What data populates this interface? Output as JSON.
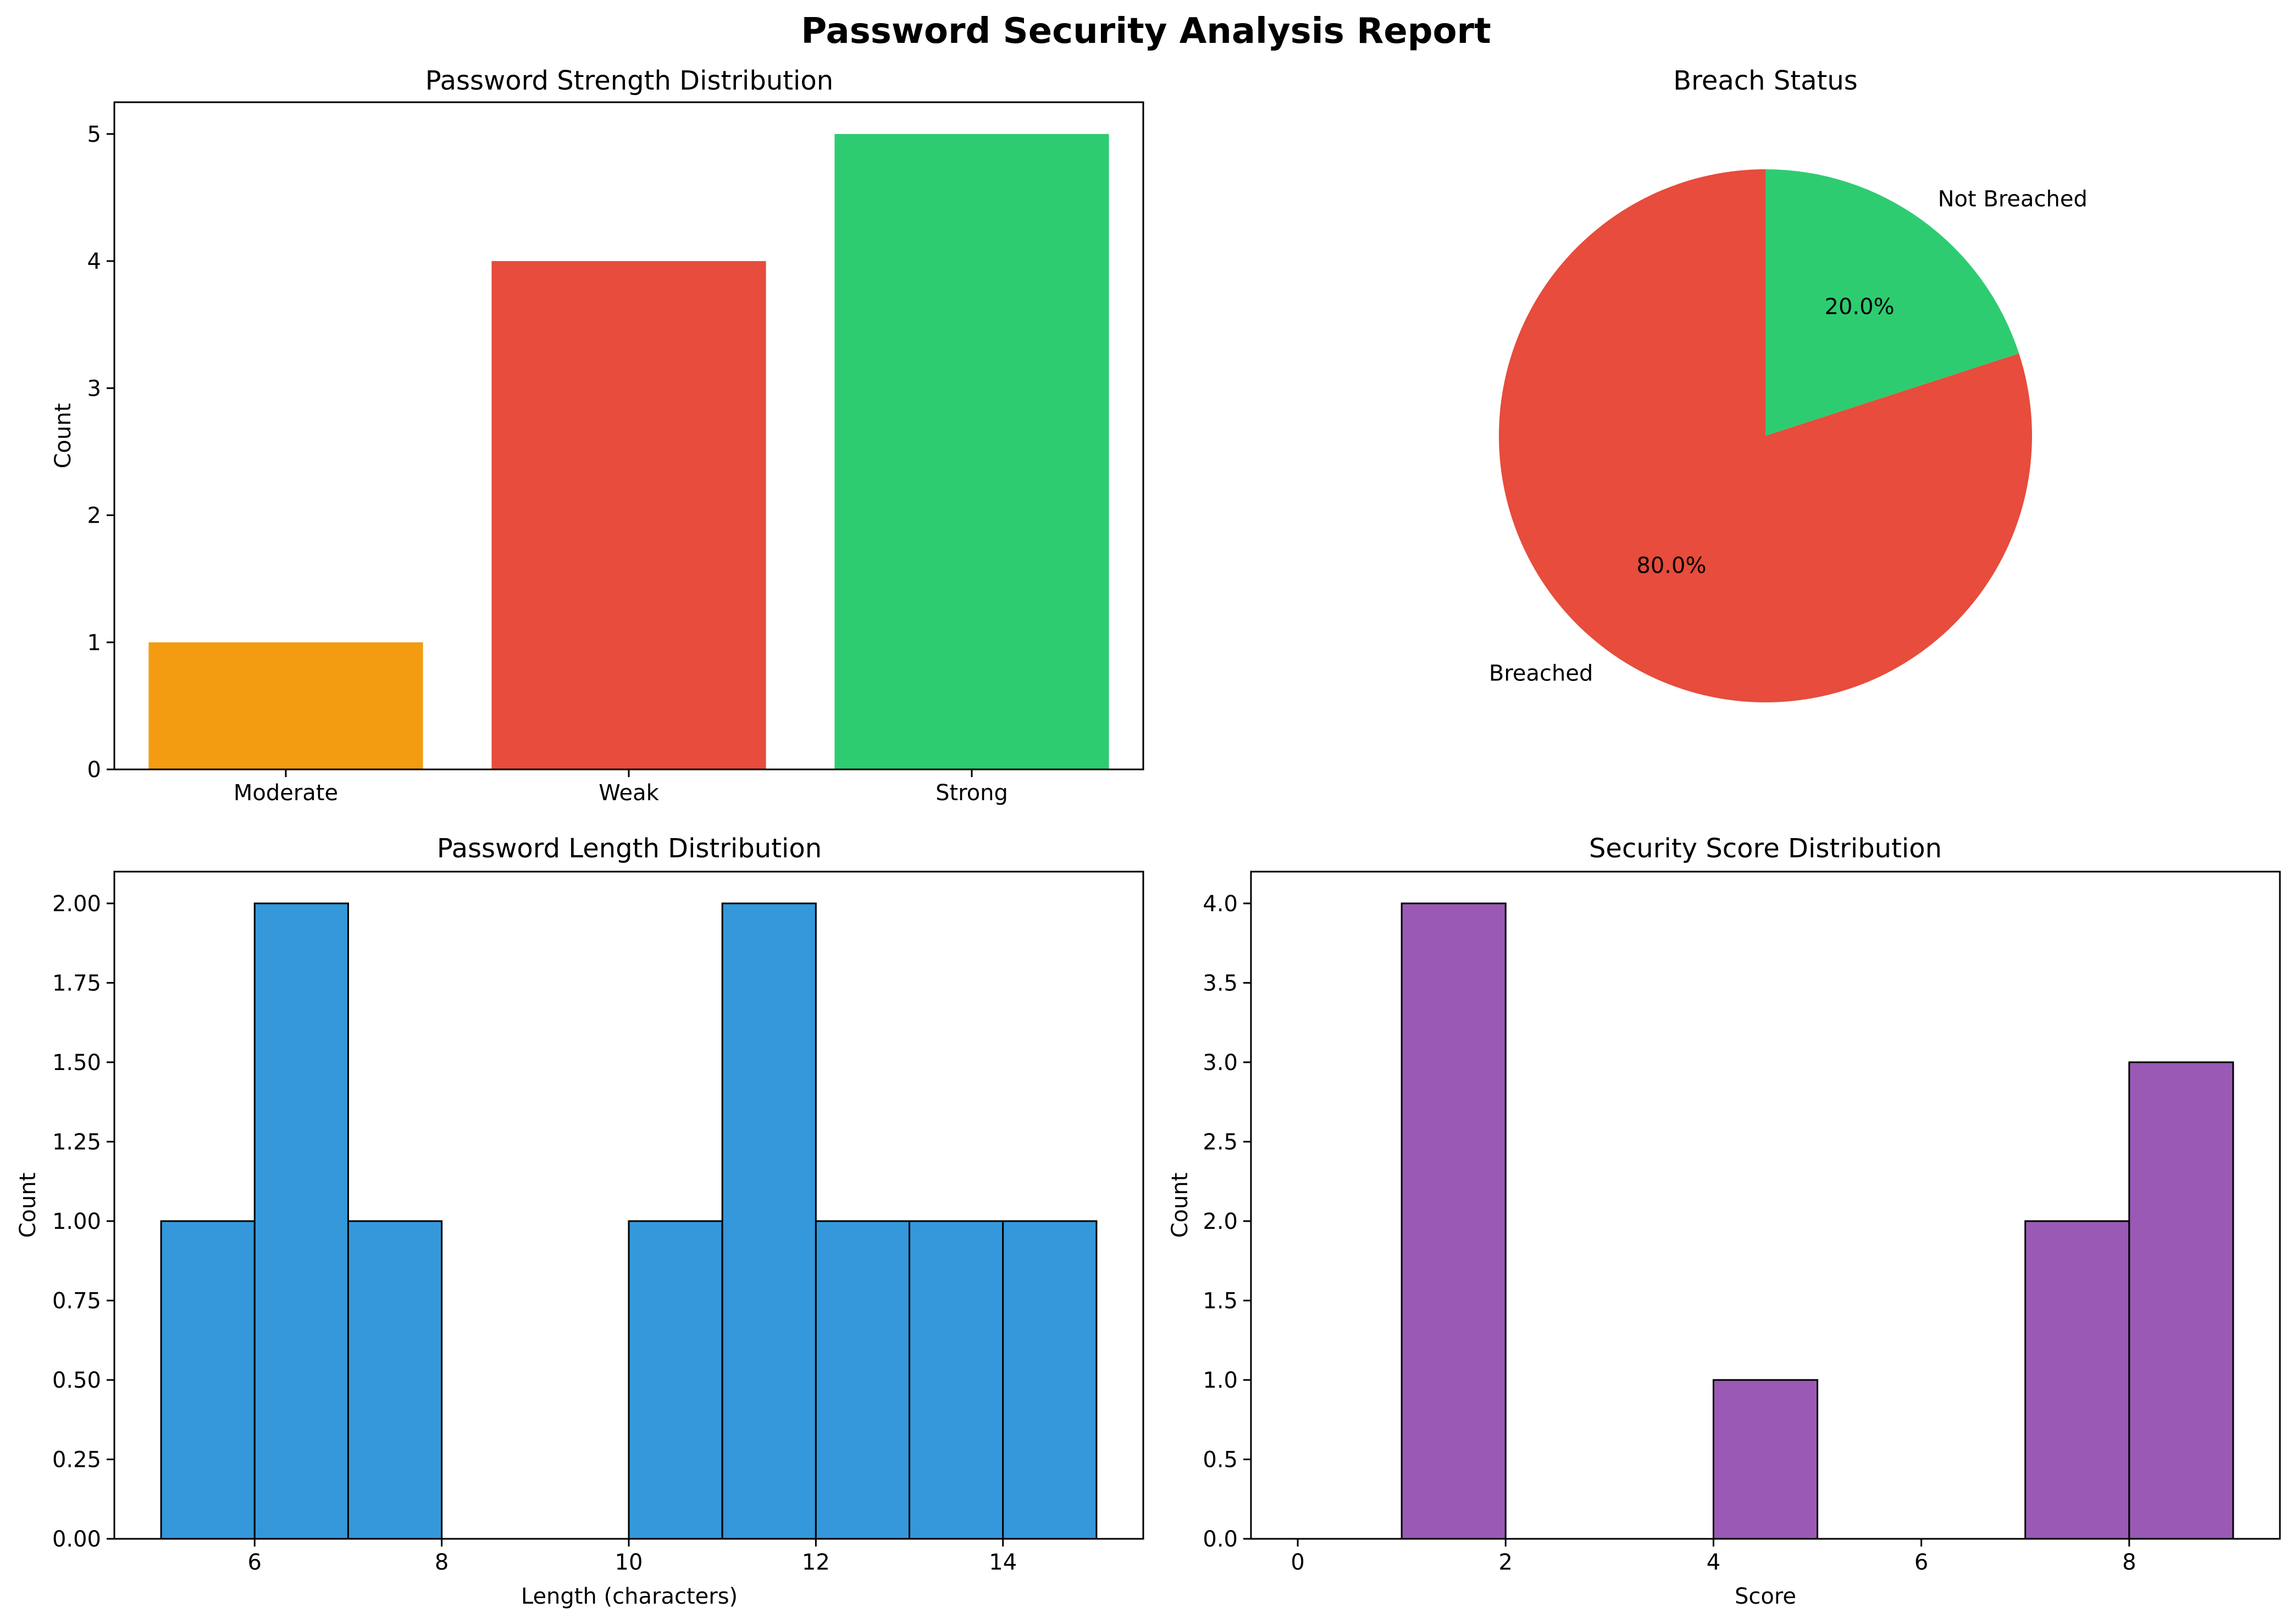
{
  "figure": {
    "title": "Password Security Analysis Report"
  },
  "chart_data": [
    {
      "type": "bar",
      "title": "Password Strength Distribution",
      "xlabel": "",
      "ylabel": "Count",
      "categories": [
        "Moderate",
        "Weak",
        "Strong"
      ],
      "values": [
        1,
        4,
        5
      ],
      "colors": [
        "#f39c12",
        "#e74c3c",
        "#2ecc71"
      ],
      "ylim": [
        0,
        5.25
      ],
      "yticks": [
        "0",
        "1",
        "2",
        "3",
        "4",
        "5"
      ],
      "grid": false
    },
    {
      "type": "pie",
      "title": "Breach Status",
      "labels": [
        "Breached",
        "Not Breached"
      ],
      "values": [
        80.0,
        20.0
      ],
      "percent_labels": [
        "80.0%",
        "20.0%"
      ],
      "colors": [
        "#e74c3c",
        "#2ecc71"
      ],
      "start_angle_deg": 90,
      "direction": "counterclockwise"
    },
    {
      "type": "bar",
      "subtype": "histogram",
      "title": "Password Length Distribution",
      "xlabel": "Length (characters)",
      "ylabel": "Count",
      "bin_edges": [
        5,
        6,
        7,
        8,
        9,
        10,
        11,
        12,
        13,
        14,
        15
      ],
      "counts": [
        1,
        2,
        1,
        0,
        0,
        1,
        2,
        1,
        1,
        1
      ],
      "color": "#3498db",
      "edgecolor": "#000000",
      "xlim": [
        4.5,
        15.5
      ],
      "ylim": [
        0,
        2.1
      ],
      "xticks": [
        "6",
        "8",
        "10",
        "12",
        "14"
      ],
      "yticks": [
        "0.00",
        "0.25",
        "0.50",
        "0.75",
        "1.00",
        "1.25",
        "1.50",
        "1.75",
        "2.00"
      ],
      "grid": false
    },
    {
      "type": "bar",
      "subtype": "histogram",
      "title": "Security Score Distribution",
      "xlabel": "Score",
      "ylabel": "Count",
      "bin_edges": [
        0,
        1,
        2,
        3,
        4,
        5,
        6,
        7,
        8,
        9
      ],
      "counts": [
        0,
        4,
        0,
        0,
        1,
        0,
        0,
        2,
        3
      ],
      "color": "#9b59b6",
      "edgecolor": "#000000",
      "xlim": [
        -0.45,
        9.45
      ],
      "ylim": [
        0,
        4.2
      ],
      "xticks": [
        "0",
        "2",
        "4",
        "6",
        "8"
      ],
      "yticks": [
        "0.0",
        "0.5",
        "1.0",
        "1.5",
        "2.0",
        "2.5",
        "3.0",
        "3.5",
        "4.0"
      ],
      "grid": false
    }
  ]
}
